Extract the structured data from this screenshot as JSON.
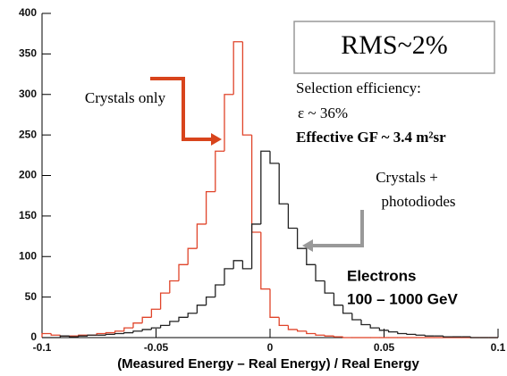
{
  "chart_data": {
    "type": "histogram",
    "xlabel": "(Measured Energy – Real Energy) / Real Energy",
    "bins": [
      -0.1,
      -0.096,
      -0.092,
      -0.088,
      -0.084,
      -0.08,
      -0.076,
      -0.072,
      -0.068,
      -0.064,
      -0.06,
      -0.056,
      -0.052,
      -0.048,
      -0.044,
      -0.04,
      -0.036,
      -0.032,
      -0.028,
      -0.024,
      -0.02,
      -0.016,
      -0.012,
      -0.008,
      -0.004,
      0,
      0.004,
      0.008,
      0.012,
      0.016,
      0.02,
      0.024,
      0.028,
      0.032,
      0.036,
      0.04,
      0.044,
      0.048,
      0.052,
      0.056,
      0.06,
      0.064,
      0.068,
      0.072,
      0.076,
      0.08,
      0.084,
      0.088,
      0.092,
      0.096,
      0.1
    ],
    "series": [
      {
        "color": "#e0442a",
        "values": [
          5,
          3,
          2,
          2,
          3,
          3,
          5,
          6,
          8,
          12,
          18,
          25,
          35,
          55,
          70,
          90,
          110,
          140,
          180,
          230,
          300,
          365,
          250,
          130,
          60,
          25,
          15,
          10,
          8,
          5,
          3,
          2,
          1,
          0,
          0,
          0,
          0,
          0,
          0,
          0,
          0,
          0,
          0,
          0,
          0,
          0,
          0,
          0,
          0,
          0
        ]
      },
      {
        "color": "#222222",
        "values": [
          0,
          0,
          2,
          1,
          2,
          3,
          3,
          4,
          5,
          6,
          8,
          10,
          12,
          15,
          20,
          25,
          30,
          40,
          50,
          65,
          85,
          95,
          85,
          140,
          230,
          215,
          165,
          135,
          110,
          90,
          70,
          55,
          40,
          30,
          22,
          16,
          12,
          9,
          7,
          5,
          4,
          3,
          2,
          2,
          1,
          1,
          1,
          0,
          0,
          0
        ]
      }
    ],
    "xlim": [
      -0.1,
      0.1
    ],
    "xticks": [
      -0.1,
      -0.05,
      0,
      0.05,
      0.1
    ],
    "ylim": [
      0,
      400
    ],
    "yticks": [
      0,
      50,
      100,
      150,
      200,
      250,
      300,
      350,
      400
    ],
    "annotations": [
      "RMS~2%",
      "Selection efficiency:",
      "ε ~ 36%",
      "Effective GF ~ 3.4 m²sr",
      "Crystals only",
      "Crystals +",
      "photodiodes",
      "Electrons",
      "100 – 1000 GeV"
    ]
  }
}
